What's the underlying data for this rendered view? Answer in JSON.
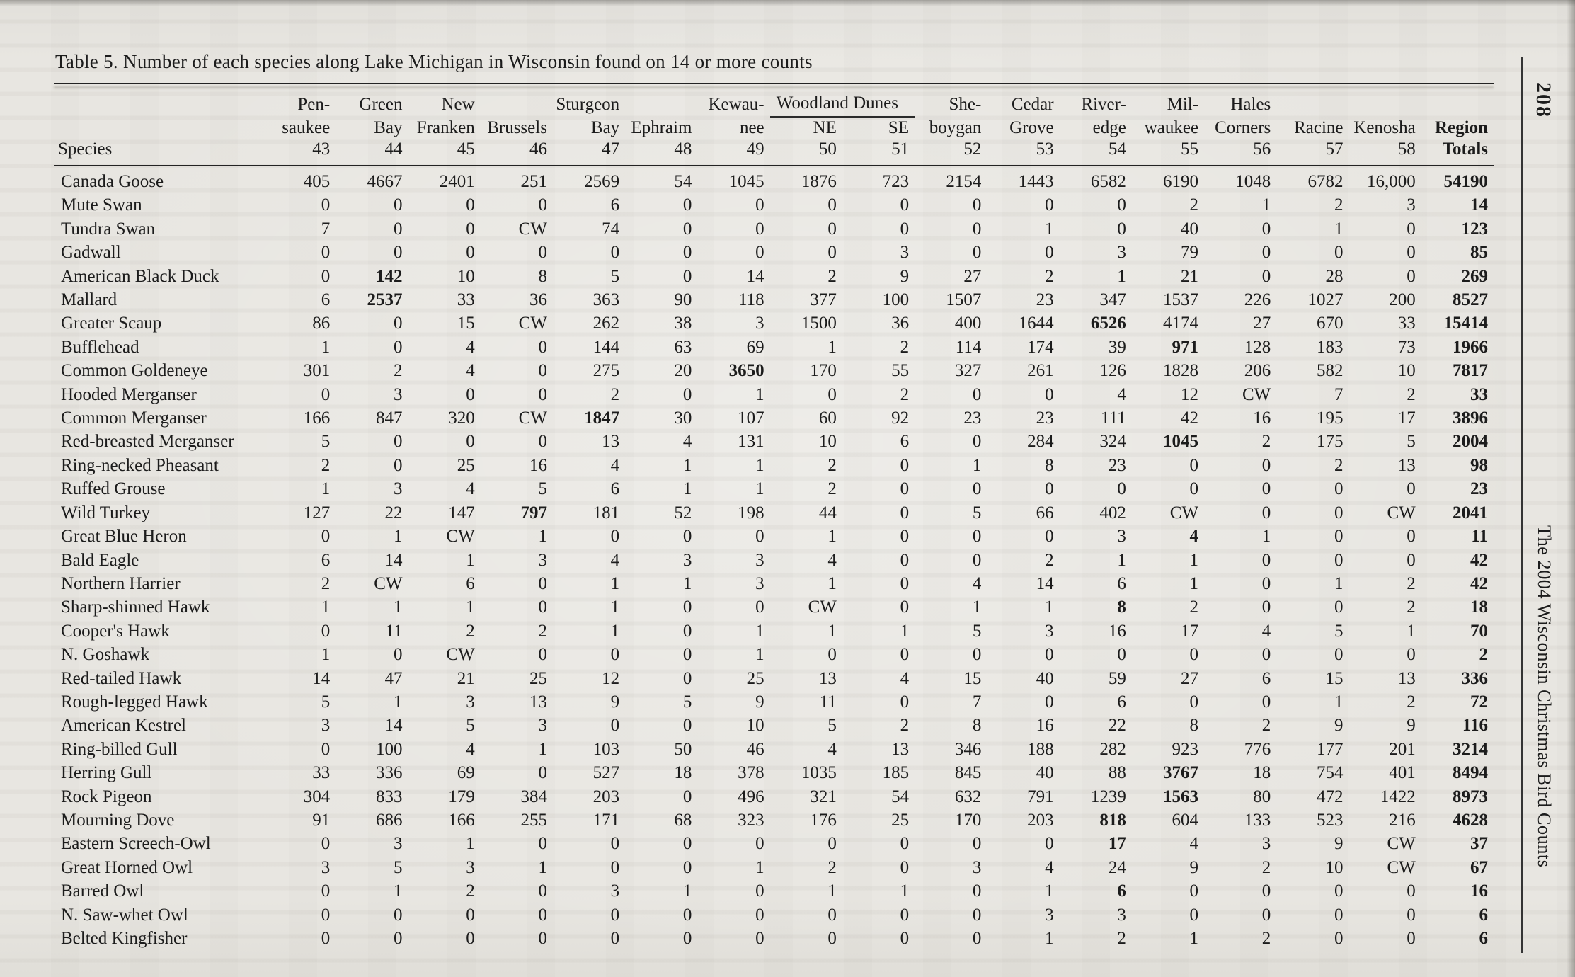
{
  "page": {
    "title": "Table 5. Number of each species along Lake Michigan in Wisconsin found on 14 or more counts",
    "page_number": "208",
    "side_title": "The 2004 Wisconsin Christmas Bird Counts"
  },
  "table": {
    "species_header": "Species",
    "group_header": "Woodland Dunes",
    "columns": [
      {
        "line1": "Pen-",
        "line2": "saukee",
        "num": "43"
      },
      {
        "line1": "Green",
        "line2": "Bay",
        "num": "44"
      },
      {
        "line1": "New",
        "line2": "Franken",
        "num": "45"
      },
      {
        "line1": "",
        "line2": "Brussels",
        "num": "46"
      },
      {
        "line1": "Sturgeon",
        "line2": "Bay",
        "num": "47"
      },
      {
        "line1": "",
        "line2": "Ephraim",
        "num": "48"
      },
      {
        "line1": "Kewau-",
        "line2": "nee",
        "num": "49"
      },
      {
        "line1": "",
        "line2": "NE",
        "num": "50"
      },
      {
        "line1": "",
        "line2": "SE",
        "num": "51"
      },
      {
        "line1": "She-",
        "line2": "boygan",
        "num": "52"
      },
      {
        "line1": "Cedar",
        "line2": "Grove",
        "num": "53"
      },
      {
        "line1": "River-",
        "line2": "edge",
        "num": "54"
      },
      {
        "line1": "Mil-",
        "line2": "waukee",
        "num": "55"
      },
      {
        "line1": "Hales",
        "line2": "Corners",
        "num": "56"
      },
      {
        "line1": "",
        "line2": "Racine",
        "num": "57"
      },
      {
        "line1": "",
        "line2": "Kenosha",
        "num": "58"
      },
      {
        "line1": "",
        "line2": "Region",
        "num": "Totals",
        "bold": true
      }
    ],
    "rows": [
      {
        "species": "Canada Goose",
        "values": [
          "405",
          "4667",
          "2401",
          "251",
          "2569",
          "54",
          "1045",
          "1876",
          "723",
          "2154",
          "1443",
          "6582",
          "6190",
          "1048",
          "6782",
          "16,000",
          "54190"
        ],
        "bold": []
      },
      {
        "species": "Mute Swan",
        "values": [
          "0",
          "0",
          "0",
          "0",
          "6",
          "0",
          "0",
          "0",
          "0",
          "0",
          "0",
          "0",
          "2",
          "1",
          "2",
          "3",
          "14"
        ],
        "bold": []
      },
      {
        "species": "Tundra Swan",
        "values": [
          "7",
          "0",
          "0",
          "CW",
          "74",
          "0",
          "0",
          "0",
          "0",
          "0",
          "1",
          "0",
          "40",
          "0",
          "1",
          "0",
          "123"
        ],
        "bold": []
      },
      {
        "species": "Gadwall",
        "values": [
          "0",
          "0",
          "0",
          "0",
          "0",
          "0",
          "0",
          "0",
          "3",
          "0",
          "0",
          "3",
          "79",
          "0",
          "0",
          "0",
          "85"
        ],
        "bold": []
      },
      {
        "species": "American Black Duck",
        "values": [
          "0",
          "142",
          "10",
          "8",
          "5",
          "0",
          "14",
          "2",
          "9",
          "27",
          "2",
          "1",
          "21",
          "0",
          "28",
          "0",
          "269"
        ],
        "bold": [
          1
        ]
      },
      {
        "species": "Mallard",
        "values": [
          "6",
          "2537",
          "33",
          "36",
          "363",
          "90",
          "118",
          "377",
          "100",
          "1507",
          "23",
          "347",
          "1537",
          "226",
          "1027",
          "200",
          "8527"
        ],
        "bold": [
          1
        ]
      },
      {
        "species": "Greater Scaup",
        "values": [
          "86",
          "0",
          "15",
          "CW",
          "262",
          "38",
          "3",
          "1500",
          "36",
          "400",
          "1644",
          "6526",
          "4174",
          "27",
          "670",
          "33",
          "15414"
        ],
        "bold": [
          11
        ]
      },
      {
        "species": "Bufflehead",
        "values": [
          "1",
          "0",
          "4",
          "0",
          "144",
          "63",
          "69",
          "1",
          "2",
          "114",
          "174",
          "39",
          "971",
          "128",
          "183",
          "73",
          "1966"
        ],
        "bold": [
          12
        ]
      },
      {
        "species": "Common Goldeneye",
        "values": [
          "301",
          "2",
          "4",
          "0",
          "275",
          "20",
          "3650",
          "170",
          "55",
          "327",
          "261",
          "126",
          "1828",
          "206",
          "582",
          "10",
          "7817"
        ],
        "bold": [
          6
        ]
      },
      {
        "species": "Hooded Merganser",
        "values": [
          "0",
          "3",
          "0",
          "0",
          "2",
          "0",
          "1",
          "0",
          "2",
          "0",
          "0",
          "4",
          "12",
          "CW",
          "7",
          "2",
          "33"
        ],
        "bold": []
      },
      {
        "species": "Common Merganser",
        "values": [
          "166",
          "847",
          "320",
          "CW",
          "1847",
          "30",
          "107",
          "60",
          "92",
          "23",
          "23",
          "111",
          "42",
          "16",
          "195",
          "17",
          "3896"
        ],
        "bold": [
          4
        ]
      },
      {
        "species": "Red-breasted Merganser",
        "values": [
          "5",
          "0",
          "0",
          "0",
          "13",
          "4",
          "131",
          "10",
          "6",
          "0",
          "284",
          "324",
          "1045",
          "2",
          "175",
          "5",
          "2004"
        ],
        "bold": [
          12
        ]
      },
      {
        "species": "Ring-necked Pheasant",
        "values": [
          "2",
          "0",
          "25",
          "16",
          "4",
          "1",
          "1",
          "2",
          "0",
          "1",
          "8",
          "23",
          "0",
          "0",
          "2",
          "13",
          "98"
        ],
        "bold": []
      },
      {
        "species": "Ruffed Grouse",
        "values": [
          "1",
          "3",
          "4",
          "5",
          "6",
          "1",
          "1",
          "2",
          "0",
          "0",
          "0",
          "0",
          "0",
          "0",
          "0",
          "0",
          "23"
        ],
        "bold": []
      },
      {
        "species": "Wild Turkey",
        "values": [
          "127",
          "22",
          "147",
          "797",
          "181",
          "52",
          "198",
          "44",
          "0",
          "5",
          "66",
          "402",
          "CW",
          "0",
          "0",
          "CW",
          "2041"
        ],
        "bold": [
          3
        ]
      },
      {
        "species": "Great Blue Heron",
        "values": [
          "0",
          "1",
          "CW",
          "1",
          "0",
          "0",
          "0",
          "1",
          "0",
          "0",
          "0",
          "3",
          "4",
          "1",
          "0",
          "0",
          "11"
        ],
        "bold": [
          12
        ]
      },
      {
        "species": "Bald Eagle",
        "values": [
          "6",
          "14",
          "1",
          "3",
          "4",
          "3",
          "3",
          "4",
          "0",
          "0",
          "2",
          "1",
          "1",
          "0",
          "0",
          "0",
          "42"
        ],
        "bold": []
      },
      {
        "species": "Northern Harrier",
        "values": [
          "2",
          "CW",
          "6",
          "0",
          "1",
          "1",
          "3",
          "1",
          "0",
          "4",
          "14",
          "6",
          "1",
          "0",
          "1",
          "2",
          "42"
        ],
        "bold": []
      },
      {
        "species": "Sharp-shinned Hawk",
        "values": [
          "1",
          "1",
          "1",
          "0",
          "1",
          "0",
          "0",
          "CW",
          "0",
          "1",
          "1",
          "8",
          "2",
          "0",
          "0",
          "2",
          "18"
        ],
        "bold": [
          11
        ]
      },
      {
        "species": "Cooper's Hawk",
        "values": [
          "0",
          "11",
          "2",
          "2",
          "1",
          "0",
          "1",
          "1",
          "1",
          "5",
          "3",
          "16",
          "17",
          "4",
          "5",
          "1",
          "70"
        ],
        "bold": []
      },
      {
        "species": "N. Goshawk",
        "values": [
          "1",
          "0",
          "CW",
          "0",
          "0",
          "0",
          "1",
          "0",
          "0",
          "0",
          "0",
          "0",
          "0",
          "0",
          "0",
          "0",
          "2"
        ],
        "bold": []
      },
      {
        "species": "Red-tailed Hawk",
        "values": [
          "14",
          "47",
          "21",
          "25",
          "12",
          "0",
          "25",
          "13",
          "4",
          "15",
          "40",
          "59",
          "27",
          "6",
          "15",
          "13",
          "336"
        ],
        "bold": []
      },
      {
        "species": "Rough-legged Hawk",
        "values": [
          "5",
          "1",
          "3",
          "13",
          "9",
          "5",
          "9",
          "11",
          "0",
          "7",
          "0",
          "6",
          "0",
          "0",
          "1",
          "2",
          "72"
        ],
        "bold": []
      },
      {
        "species": "American Kestrel",
        "values": [
          "3",
          "14",
          "5",
          "3",
          "0",
          "0",
          "10",
          "5",
          "2",
          "8",
          "16",
          "22",
          "8",
          "2",
          "9",
          "9",
          "116"
        ],
        "bold": []
      },
      {
        "species": "Ring-billed Gull",
        "values": [
          "0",
          "100",
          "4",
          "1",
          "103",
          "50",
          "46",
          "4",
          "13",
          "346",
          "188",
          "282",
          "923",
          "776",
          "177",
          "201",
          "3214"
        ],
        "bold": []
      },
      {
        "species": "Herring Gull",
        "values": [
          "33",
          "336",
          "69",
          "0",
          "527",
          "18",
          "378",
          "1035",
          "185",
          "845",
          "40",
          "88",
          "3767",
          "18",
          "754",
          "401",
          "8494"
        ],
        "bold": [
          12
        ]
      },
      {
        "species": "Rock Pigeon",
        "values": [
          "304",
          "833",
          "179",
          "384",
          "203",
          "0",
          "496",
          "321",
          "54",
          "632",
          "791",
          "1239",
          "1563",
          "80",
          "472",
          "1422",
          "8973"
        ],
        "bold": [
          12
        ]
      },
      {
        "species": "Mourning Dove",
        "values": [
          "91",
          "686",
          "166",
          "255",
          "171",
          "68",
          "323",
          "176",
          "25",
          "170",
          "203",
          "818",
          "604",
          "133",
          "523",
          "216",
          "4628"
        ],
        "bold": [
          11
        ]
      },
      {
        "species": "Eastern Screech-Owl",
        "values": [
          "0",
          "3",
          "1",
          "0",
          "0",
          "0",
          "0",
          "0",
          "0",
          "0",
          "0",
          "17",
          "4",
          "3",
          "9",
          "CW",
          "37"
        ],
        "bold": [
          11
        ]
      },
      {
        "species": "Great Horned Owl",
        "values": [
          "3",
          "5",
          "3",
          "1",
          "0",
          "0",
          "1",
          "2",
          "0",
          "3",
          "4",
          "24",
          "9",
          "2",
          "10",
          "CW",
          "67"
        ],
        "bold": []
      },
      {
        "species": "Barred Owl",
        "values": [
          "0",
          "1",
          "2",
          "0",
          "3",
          "1",
          "0",
          "1",
          "1",
          "0",
          "1",
          "6",
          "0",
          "0",
          "0",
          "0",
          "16"
        ],
        "bold": [
          11
        ]
      },
      {
        "species": "N. Saw-whet Owl",
        "values": [
          "0",
          "0",
          "0",
          "0",
          "0",
          "0",
          "0",
          "0",
          "0",
          "0",
          "3",
          "3",
          "0",
          "0",
          "0",
          "0",
          "6"
        ],
        "bold": []
      },
      {
        "species": "Belted Kingfisher",
        "values": [
          "0",
          "0",
          "0",
          "0",
          "0",
          "0",
          "0",
          "0",
          "0",
          "0",
          "1",
          "2",
          "1",
          "2",
          "0",
          "0",
          "6"
        ],
        "bold": []
      }
    ]
  }
}
